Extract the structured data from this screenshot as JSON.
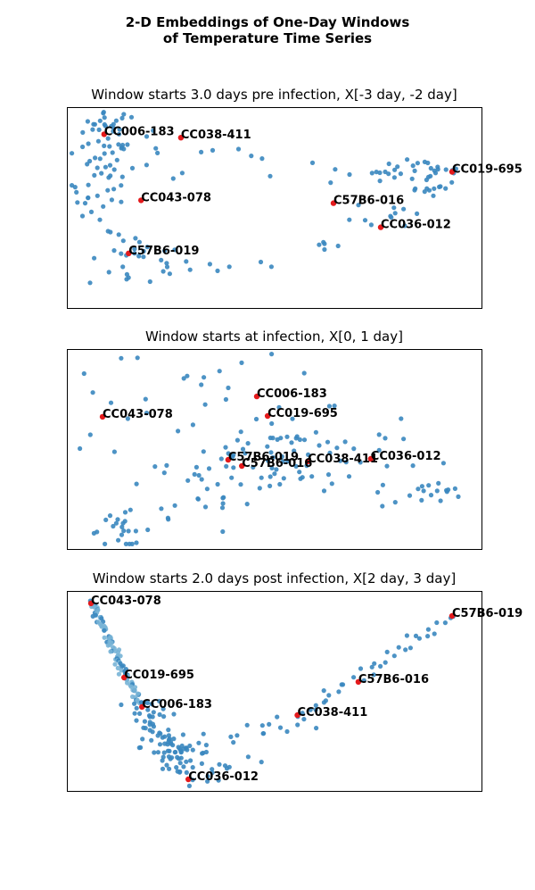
{
  "figure_title": "2-D Embeddings of One-Day Windows\nof Temperature Time Series",
  "colors": {
    "point": "#3a87bf",
    "point_light": "#78b4d6",
    "highlight": "#e41a1c",
    "frame": "#000000"
  },
  "chart_data": [
    {
      "type": "scatter",
      "title": "Window starts 3.0 days pre infection, X[-3 day, -2 day]",
      "xlabel": "",
      "ylabel": "",
      "xlim": [
        0,
        100
      ],
      "ylim": [
        0,
        100
      ],
      "axes_ticks": "none",
      "grid": false,
      "highlights": [
        {
          "label": "CC006-183",
          "x": 9.0,
          "y": 86.5
        },
        {
          "label": "CC038-411",
          "x": 27.5,
          "y": 84.8
        },
        {
          "label": "CC019-695",
          "x": 92.9,
          "y": 67.8
        },
        {
          "label": "CC043-078",
          "x": 17.9,
          "y": 53.6
        },
        {
          "label": "C57B6-016",
          "x": 64.3,
          "y": 52.2
        },
        {
          "label": "CC036-012",
          "x": 75.7,
          "y": 40.2
        },
        {
          "label": "C57B6-019",
          "x": 14.9,
          "y": 27.2
        }
      ],
      "clusters": [
        {
          "cx": 10,
          "cy": 90,
          "sx": 3.0,
          "sy": 5,
          "n": 26
        },
        {
          "cx": 8,
          "cy": 62,
          "sx": 3.5,
          "sy": 12,
          "n": 38
        },
        {
          "cx": 20,
          "cy": 75,
          "sx": 7,
          "sy": 8,
          "n": 14
        },
        {
          "cx": 17,
          "cy": 23,
          "sx": 6,
          "sy": 7,
          "n": 30
        },
        {
          "cx": 38,
          "cy": 21,
          "sx": 6,
          "sy": 2,
          "n": 6
        },
        {
          "cx": 73,
          "cy": 68,
          "sx": 6,
          "sy": 4,
          "n": 16
        },
        {
          "cx": 88,
          "cy": 66,
          "sx": 4.5,
          "sy": 6,
          "n": 28
        },
        {
          "cx": 79,
          "cy": 49,
          "sx": 5,
          "sy": 6,
          "n": 12
        },
        {
          "cx": 62,
          "cy": 31,
          "sx": 2,
          "sy": 2,
          "n": 5
        },
        {
          "cx": 40,
          "cy": 76,
          "sx": 10,
          "sy": 5,
          "n": 6
        }
      ]
    },
    {
      "type": "scatter",
      "title": "Window starts at infection, X[0, 1 day]",
      "xlabel": "",
      "ylabel": "",
      "xlim": [
        0,
        100
      ],
      "ylim": [
        0,
        100
      ],
      "axes_ticks": "none",
      "grid": false,
      "highlights": [
        {
          "label": "CC006-183",
          "x": 45.8,
          "y": 76.3
        },
        {
          "label": "CC043-078",
          "x": 8.6,
          "y": 66.1
        },
        {
          "label": "CC019-695",
          "x": 48.4,
          "y": 66.5
        },
        {
          "label": "CC036-012",
          "x": 73.3,
          "y": 45.1
        },
        {
          "label": "C57B6-019",
          "x": 38.9,
          "y": 44.6
        },
        {
          "label": "CC038-411",
          "x": 58.1,
          "y": 43.8
        },
        {
          "label": "C57B6-016",
          "x": 42.2,
          "y": 41.5
        }
      ],
      "clusters": [
        {
          "cx": 52,
          "cy": 46,
          "sx": 14,
          "sy": 11,
          "n": 95
        },
        {
          "cx": 38,
          "cy": 88,
          "sx": 12,
          "sy": 6,
          "n": 12
        },
        {
          "cx": 13,
          "cy": 9,
          "sx": 4,
          "sy": 4,
          "n": 22
        },
        {
          "cx": 10,
          "cy": 72,
          "sx": 5,
          "sy": 12,
          "n": 10
        },
        {
          "cx": 88,
          "cy": 27,
          "sx": 6,
          "sy": 3,
          "n": 16
        },
        {
          "cx": 28,
          "cy": 25,
          "sx": 8,
          "sy": 9,
          "n": 14
        }
      ]
    },
    {
      "type": "scatter",
      "title": "Window starts 2.0 days post infection, X[2 day, 3 day]",
      "xlabel": "",
      "ylabel": "",
      "xlim": [
        0,
        100
      ],
      "ylim": [
        0,
        100
      ],
      "axes_ticks": "none",
      "grid": false,
      "highlights": [
        {
          "label": "CC043-078",
          "x": 5.8,
          "y": 93.8
        },
        {
          "label": "C57B6-019",
          "x": 92.9,
          "y": 87.5
        },
        {
          "label": "CC019-695",
          "x": 13.8,
          "y": 56.7
        },
        {
          "label": "C57B6-016",
          "x": 70.3,
          "y": 54.5
        },
        {
          "label": "CC006-183",
          "x": 18.1,
          "y": 42.0
        },
        {
          "label": "CC038-411",
          "x": 55.6,
          "y": 37.9
        },
        {
          "label": "CC036-012",
          "x": 29.3,
          "y": 5.8
        }
      ],
      "curves": [
        {
          "from": [
            5.8,
            93.8
          ],
          "to": [
            17.5,
            44.0
          ],
          "n": 95,
          "jitter": 0.6,
          "light": true
        },
        {
          "from": [
            17.5,
            44.0
          ],
          "to": [
            29.3,
            5.8
          ],
          "n": 70,
          "jitter": 2.5
        },
        {
          "from": [
            29.3,
            5.8
          ],
          "to": [
            55.6,
            37.9
          ],
          "n": 25,
          "jitter": 3.5
        },
        {
          "from": [
            55.6,
            37.9
          ],
          "to": [
            92.9,
            87.5
          ],
          "n": 35,
          "jitter": 1.2
        }
      ],
      "clusters": [
        {
          "cx": 28,
          "cy": 22,
          "sx": 5,
          "sy": 5,
          "n": 30
        }
      ]
    }
  ]
}
